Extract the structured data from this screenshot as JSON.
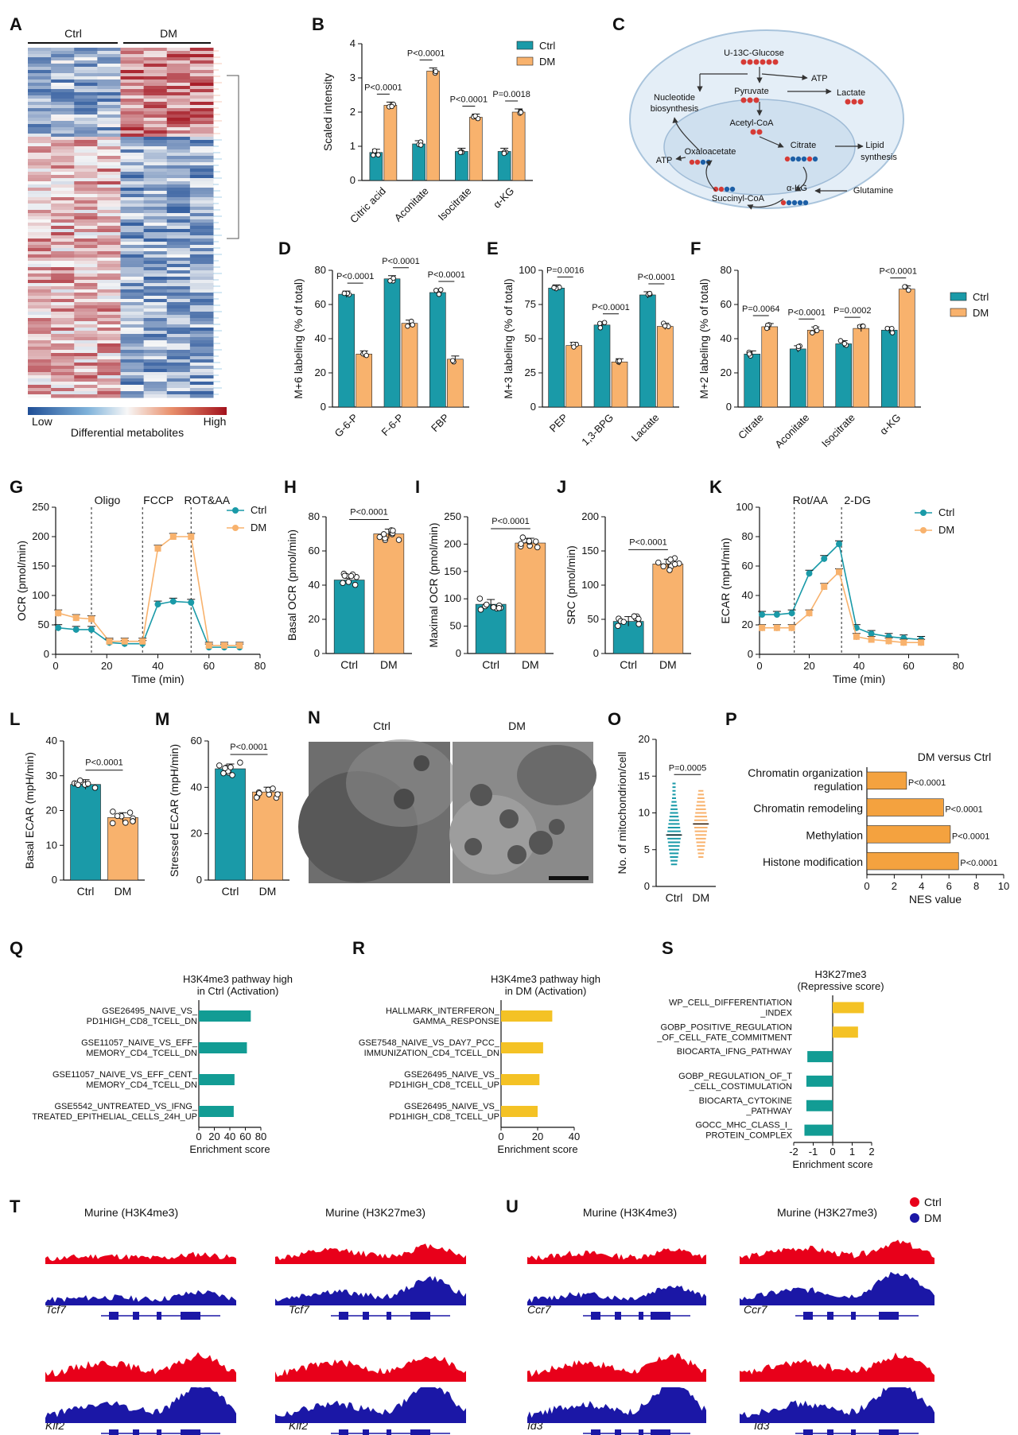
{
  "colors": {
    "ctrl": "#1a9aa8",
    "dm": "#f8b26d",
    "nes": "#f4a23f",
    "gsea_ctrl": "#129c94",
    "gsea_dm": "#f4c225",
    "track_ctrl": "#e8001a",
    "track_dm": "#1b17a6",
    "heat_low": "#1f4e96",
    "heat_high": "#a3121d"
  },
  "legend": {
    "ctrl": "Ctrl",
    "dm": "DM"
  },
  "panels": {
    "A": {
      "label": "A",
      "groups": [
        "Ctrl",
        "DM"
      ],
      "low": "Low",
      "high": "High",
      "caption": "Differential metabolites"
    },
    "C": {
      "label": "C",
      "glucose": "U-13C-Glucose",
      "atp1": "ATP",
      "pyruvate": "Pyruvate",
      "lactate": "Lactate",
      "nucleotide": "Nucleotide biosynthesis",
      "acetyl": "Acetyl-CoA",
      "citrate": "Citrate",
      "lipid": "Lipid synthesis",
      "oxalo": "Oxaloacetate",
      "atp2": "ATP",
      "akg": "α-KG",
      "glutamine": "Glutamine",
      "succinyl": "Succinyl-CoA"
    },
    "N": {
      "label": "N",
      "ctrl": "Ctrl",
      "dm": "DM"
    },
    "T": {
      "label": "T",
      "title1": "Murine (H3K4me3)",
      "title2": "Murine (H3K27me3)",
      "genes": [
        "Tcf7",
        "Tcf7",
        "Klf2",
        "Klf2"
      ]
    },
    "U": {
      "label": "U",
      "title1": "Murine (H3K4me3)",
      "title2": "Murine (H3K27me3)",
      "genes": [
        "Ccr7",
        "Ccr7",
        "Id3",
        "Id3"
      ]
    }
  },
  "chart_data": [
    {
      "id": "B",
      "type": "bar",
      "ylabel": "Scaled intensity",
      "ylim": [
        0,
        4
      ],
      "yticks": [
        0,
        1,
        2,
        3,
        4
      ],
      "categories": [
        "Citric acid",
        "Aconitate",
        "Isocitrate",
        "α-KG"
      ],
      "series": [
        {
          "name": "Ctrl",
          "values": [
            0.82,
            1.07,
            0.85,
            0.85
          ]
        },
        {
          "name": "DM",
          "values": [
            2.2,
            3.2,
            1.85,
            2.0
          ]
        }
      ],
      "pvalues": [
        "P<0.0001",
        "P<0.0001",
        "P<0.0001",
        "P=0.0018"
      ],
      "legend": [
        "Ctrl",
        "DM"
      ]
    },
    {
      "id": "D",
      "type": "bar",
      "ylabel": "M+6 labeling (% of total)",
      "ylim": [
        0,
        80
      ],
      "yticks": [
        0,
        20,
        40,
        60,
        80
      ],
      "categories": [
        "G-6-P",
        "F-6-P",
        "FBP"
      ],
      "series": [
        {
          "name": "Ctrl",
          "values": [
            66,
            75,
            67
          ]
        },
        {
          "name": "DM",
          "values": [
            31,
            49,
            28
          ]
        }
      ],
      "pvalues": [
        "P<0.0001",
        "P<0.0001",
        "P<0.0001"
      ]
    },
    {
      "id": "E",
      "type": "bar",
      "ylabel": "M+3 labeling (% of total)",
      "ylim": [
        0,
        100
      ],
      "yticks": [
        0,
        25,
        50,
        75,
        100
      ],
      "categories": [
        "PEP",
        "1,3-BPG",
        "Lactate"
      ],
      "series": [
        {
          "name": "Ctrl",
          "values": [
            87,
            60,
            82
          ]
        },
        {
          "name": "DM",
          "values": [
            45,
            33,
            59
          ]
        }
      ],
      "pvalues": [
        "P=0.0016",
        "P<0.0001",
        "P<0.0001"
      ]
    },
    {
      "id": "F",
      "type": "bar",
      "ylabel": "M+2 labeling (% of total)",
      "ylim": [
        0,
        80
      ],
      "yticks": [
        0,
        20,
        40,
        60,
        80
      ],
      "categories": [
        "Citrate",
        "Aconitate",
        "Isocitrate",
        "α-KG"
      ],
      "series": [
        {
          "name": "Ctrl",
          "values": [
            31,
            34,
            37,
            45
          ]
        },
        {
          "name": "DM",
          "values": [
            47,
            45,
            46,
            69
          ]
        }
      ],
      "pvalues": [
        "P=0.0064",
        "P<0.0001",
        "P=0.0002",
        "P<0.0001"
      ],
      "legend": [
        "Ctrl",
        "DM"
      ]
    },
    {
      "id": "G",
      "type": "line",
      "xlabel": "Time (min)",
      "ylabel": "OCR (pmol/min)",
      "xlim": [
        0,
        80
      ],
      "ylim": [
        0,
        250
      ],
      "xticks": [
        0,
        20,
        40,
        60,
        80
      ],
      "yticks": [
        0,
        50,
        100,
        150,
        200,
        250
      ],
      "markers": [
        {
          "x": 14,
          "label": "Oligo"
        },
        {
          "x": 34,
          "label": "FCCP"
        },
        {
          "x": 53,
          "label": "ROT&AA"
        }
      ],
      "series": [
        {
          "name": "Ctrl",
          "x": [
            1,
            8,
            14,
            21,
            27,
            34,
            40,
            46,
            53,
            60,
            66,
            72
          ],
          "y": [
            45,
            42,
            42,
            20,
            18,
            18,
            85,
            90,
            88,
            12,
            12,
            12
          ]
        },
        {
          "name": "DM",
          "x": [
            1,
            8,
            14,
            21,
            27,
            34,
            40,
            46,
            53,
            60,
            66,
            72
          ],
          "y": [
            70,
            62,
            60,
            22,
            22,
            22,
            180,
            200,
            200,
            15,
            15,
            15
          ]
        }
      ]
    },
    {
      "id": "H",
      "type": "bar",
      "ylabel": "Basal OCR (pmol/min)",
      "ylim": [
        0,
        80
      ],
      "yticks": [
        0,
        20,
        40,
        60,
        80
      ],
      "categories": [
        "Ctrl",
        "DM"
      ],
      "values": [
        43,
        70
      ],
      "pvalue": "P<0.0001"
    },
    {
      "id": "I",
      "type": "bar",
      "ylabel": "Maximal OCR (pmol/min)",
      "ylim": [
        0,
        250
      ],
      "yticks": [
        0,
        50,
        100,
        150,
        200,
        250
      ],
      "categories": [
        "Ctrl",
        "DM"
      ],
      "values": [
        90,
        202
      ],
      "pvalue": "P<0.0001"
    },
    {
      "id": "J",
      "type": "bar",
      "ylabel": "SRC (pmol/min)",
      "ylim": [
        0,
        200
      ],
      "yticks": [
        0,
        50,
        100,
        150,
        200
      ],
      "categories": [
        "Ctrl",
        "DM"
      ],
      "values": [
        47,
        131
      ],
      "pvalue": "P<0.0001"
    },
    {
      "id": "K",
      "type": "line",
      "xlabel": "Time (min)",
      "ylabel": "ECAR (mpH/min)",
      "xlim": [
        0,
        80
      ],
      "ylim": [
        0,
        100
      ],
      "xticks": [
        0,
        20,
        40,
        60,
        80
      ],
      "yticks": [
        0,
        20,
        40,
        60,
        80,
        100
      ],
      "markers": [
        {
          "x": 14,
          "label": "Rot/AA"
        },
        {
          "x": 33,
          "label": "2-DG"
        }
      ],
      "series": [
        {
          "name": "Ctrl",
          "x": [
            1,
            7,
            13,
            20,
            26,
            32,
            39,
            45,
            52,
            58,
            65
          ],
          "y": [
            27,
            27,
            28,
            55,
            65,
            75,
            18,
            14,
            12,
            11,
            10
          ]
        },
        {
          "name": "DM",
          "x": [
            1,
            7,
            13,
            20,
            26,
            32,
            39,
            45,
            52,
            58,
            65
          ],
          "y": [
            18,
            18,
            18,
            28,
            46,
            56,
            12,
            10,
            9,
            8,
            8
          ]
        }
      ]
    },
    {
      "id": "L",
      "type": "bar",
      "ylabel": "Basal ECAR (mpH/min)",
      "ylim": [
        0,
        40
      ],
      "yticks": [
        0,
        10,
        20,
        30,
        40
      ],
      "categories": [
        "Ctrl",
        "DM"
      ],
      "values": [
        27.5,
        18
      ],
      "pvalue": "P<0.0001"
    },
    {
      "id": "M",
      "type": "bar",
      "ylabel": "Stressed ECAR (mpH/min)",
      "ylim": [
        0,
        60
      ],
      "yticks": [
        0,
        20,
        40,
        60
      ],
      "categories": [
        "Ctrl",
        "DM"
      ],
      "values": [
        48,
        38
      ],
      "pvalue": "P<0.0001"
    },
    {
      "id": "O",
      "type": "scatter",
      "ylabel": "No. of mitochondrion/cell",
      "ylim": [
        0,
        20
      ],
      "yticks": [
        0,
        5,
        10,
        15,
        20
      ],
      "categories": [
        "Ctrl",
        "DM"
      ],
      "means": [
        7,
        8.5
      ],
      "ranges": [
        [
          3,
          14
        ],
        [
          4,
          13
        ]
      ],
      "pvalue": "P=0.0005"
    },
    {
      "id": "P",
      "type": "bar",
      "orientation": "horizontal",
      "title": "DM versus Ctrl",
      "xlabel": "NES value",
      "xlim": [
        0,
        10
      ],
      "xticks": [
        0,
        2,
        4,
        6,
        8,
        10
      ],
      "categories": [
        "Chromatin organization regulation",
        "Chromatin remodeling",
        "Methylation",
        "Histone modification"
      ],
      "values": [
        2.9,
        5.6,
        6.1,
        6.7
      ],
      "pvalues": [
        "P<0.0001",
        "P<0.0001",
        "P<0.0001",
        "P<0.0001"
      ]
    },
    {
      "id": "Q",
      "type": "bar",
      "orientation": "horizontal",
      "title": "H3K4me3 pathway high in Ctrl (Activation)",
      "xlabel": "Enrichment score",
      "xlim": [
        0,
        80
      ],
      "xticks": [
        0,
        20,
        40,
        60,
        80
      ],
      "categories": [
        "GSE26495_NAIVE_VS_ PD1HIGH_CD8_TCELL_DN",
        "GSE11057_NAIVE_VS_EFF_ MEMORY_CD4_TCELL_DN",
        "GSE11057_NAIVE_VS_EFF_CENT_ MEMORY_CD4_TCELL_DN",
        "GSE5542_UNTREATED_VS_IFNG_ TREATED_EPITHELIAL_CELLS_24H_UP"
      ],
      "values": [
        67,
        62,
        46,
        45
      ]
    },
    {
      "id": "R",
      "type": "bar",
      "orientation": "horizontal",
      "title": "H3K4me3 pathway high in DM (Activation)",
      "xlabel": "Enrichment score",
      "xlim": [
        0,
        40
      ],
      "xticks": [
        0,
        20,
        40
      ],
      "categories": [
        "HALLMARK_INTERFERON_ GAMMA_RESPONSE",
        "GSE7548_NAIVE_VS_DAY7_PCC_ IMMUNIZATION_CD4_TCELL_DN",
        "GSE26495_NAIVE_VS_ PD1HIGH_CD8_TCELL_UP",
        "GSE26495_NAIVE_VS_ PD1HIGH_CD8_TCELL_UP"
      ],
      "values": [
        28,
        23,
        21,
        20
      ]
    },
    {
      "id": "S",
      "type": "bar",
      "orientation": "horizontal",
      "title": "H3K27me3 (Repressive score)",
      "xlabel": "Enrichment score",
      "xlim": [
        -2,
        2
      ],
      "xticks": [
        -2,
        -1,
        0,
        1,
        2
      ],
      "categories": [
        "WP_CELL_DIFFERENTIATION _INDEX",
        "GOBP_POSITIVE_REGULATION _OF_CELL_FATE_COMMITMENT",
        "BIOCARTA_IFNG_PATHWAY",
        "GOBP_REGULATION_OF_T _CELL_COSTIMULATION",
        "BIOCARTA_CYTOKINE _PATHWAY",
        "GOCC_MHC_CLASS_I_ PROTEIN_COMPLEX"
      ],
      "values": [
        1.6,
        1.3,
        -1.3,
        -1.35,
        -1.35,
        -1.45
      ]
    }
  ]
}
